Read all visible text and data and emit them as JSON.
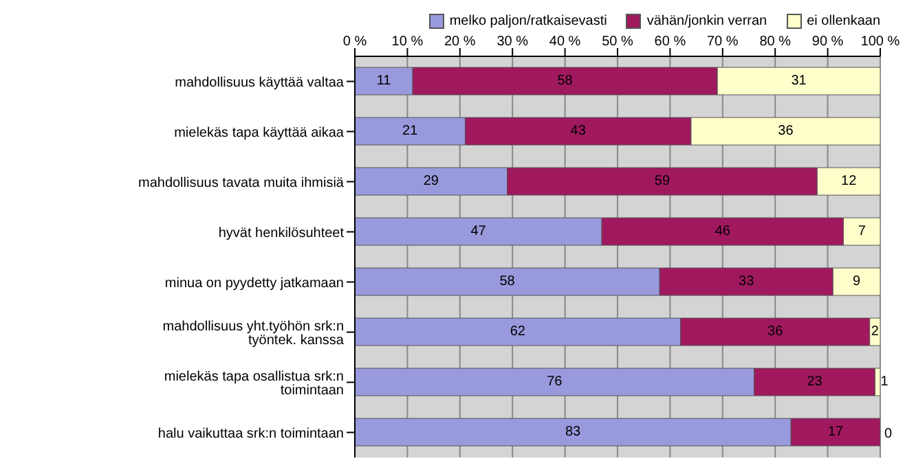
{
  "chart_data": {
    "type": "bar",
    "orientation": "horizontal",
    "stacked": true,
    "data_labels": true,
    "grid": "x",
    "legend": "top",
    "xlim": [
      0,
      100
    ],
    "xticks": [
      {
        "value": 0,
        "label": "0 %"
      },
      {
        "value": 10,
        "label": "10 %"
      },
      {
        "value": 20,
        "label": "20 %"
      },
      {
        "value": 30,
        "label": "30 %"
      },
      {
        "value": 40,
        "label": "40 %"
      },
      {
        "value": 50,
        "label": "50 %"
      },
      {
        "value": 60,
        "label": "60 %"
      },
      {
        "value": 70,
        "label": "70 %"
      },
      {
        "value": 80,
        "label": "80 %"
      },
      {
        "value": 90,
        "label": "90 %"
      },
      {
        "value": 100,
        "label": "100 %"
      }
    ],
    "categories": [
      "mahdollisuus käyttää valtaa",
      "mielekäs tapa käyttää aikaa",
      "mahdollisuus tavata muita ihmisiä",
      "hyvät henkilösuhteet",
      "minua on pyydetty jatkamaan",
      "mahdollisuus yht.työhön srk:n työntek. kanssa",
      "mielekäs tapa osallistua srk:n toimintaan",
      "halu vaikuttaa srk:n toimintaan"
    ],
    "series": [
      {
        "name": "melko paljon/ratkaisevasti",
        "color": "#9999dd",
        "values": [
          11,
          21,
          29,
          47,
          58,
          62,
          76,
          83
        ]
      },
      {
        "name": "vähän/jonkin verran",
        "color": "#a0195f",
        "values": [
          58,
          43,
          59,
          46,
          33,
          36,
          23,
          17
        ]
      },
      {
        "name": "ei ollenkaan",
        "color": "#ffffcc",
        "values": [
          31,
          36,
          12,
          7,
          9,
          2,
          1,
          0
        ]
      }
    ]
  }
}
